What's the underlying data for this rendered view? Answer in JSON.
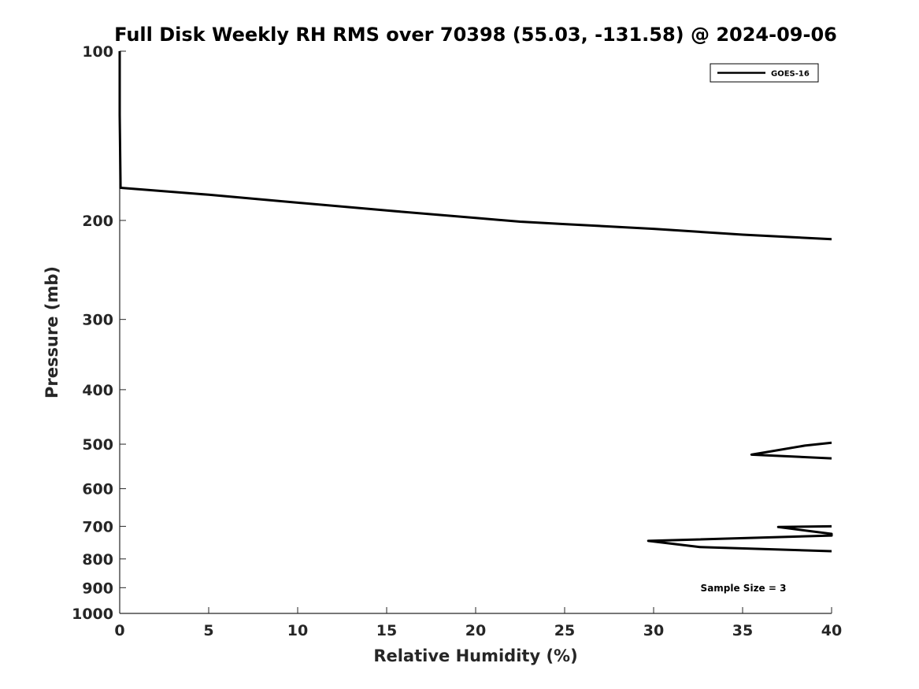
{
  "chart_data": {
    "type": "line",
    "title": "Full Disk Weekly RH RMS over 70398 (55.03, -131.58) @ 2024-09-06",
    "xlabel": "Relative Humidity (%)",
    "ylabel": "Pressure (mb)",
    "xlim": [
      0,
      40
    ],
    "ylim": [
      1000,
      100
    ],
    "y_scale": "log",
    "y_reversed": true,
    "grid": false,
    "legend_position": "top-right",
    "x_ticks": [
      0,
      5,
      10,
      15,
      20,
      25,
      30,
      35,
      40
    ],
    "x_tick_labels": [
      "0",
      "5",
      "10",
      "15",
      "20",
      "25",
      "30",
      "35",
      "40"
    ],
    "y_ticks": [
      100,
      200,
      300,
      400,
      500,
      600,
      700,
      800,
      900,
      1000
    ],
    "y_tick_labels": [
      "100",
      "200",
      "300",
      "400",
      "500",
      "600",
      "700",
      "800",
      "900",
      "1000"
    ],
    "series": [
      {
        "name": "GOES-16",
        "color": "#000000",
        "segments": [
          [
            {
              "x": 0.0,
              "y": 100
            },
            {
              "x": 0.0,
              "y": 130
            },
            {
              "x": 0.05,
              "y": 175
            },
            {
              "x": 5,
              "y": 180
            },
            {
              "x": 10,
              "y": 186
            },
            {
              "x": 15,
              "y": 192
            },
            {
              "x": 20,
              "y": 198
            },
            {
              "x": 22.5,
              "y": 201
            },
            {
              "x": 25,
              "y": 203
            },
            {
              "x": 30,
              "y": 207
            },
            {
              "x": 35,
              "y": 212
            },
            {
              "x": 40,
              "y": 216
            }
          ],
          [
            {
              "x": 40,
              "y": 497
            },
            {
              "x": 38.5,
              "y": 503
            },
            {
              "x": 35.5,
              "y": 522
            },
            {
              "x": 40,
              "y": 530
            }
          ],
          [
            {
              "x": 40,
              "y": 700
            },
            {
              "x": 37,
              "y": 702
            },
            {
              "x": 40,
              "y": 722
            },
            {
              "x": 40,
              "y": 727
            },
            {
              "x": 29.7,
              "y": 743
            },
            {
              "x": 32.6,
              "y": 762
            },
            {
              "x": 40,
              "y": 775
            }
          ]
        ]
      }
    ],
    "annotations": [
      {
        "text": "Sample Size = 3"
      }
    ]
  }
}
